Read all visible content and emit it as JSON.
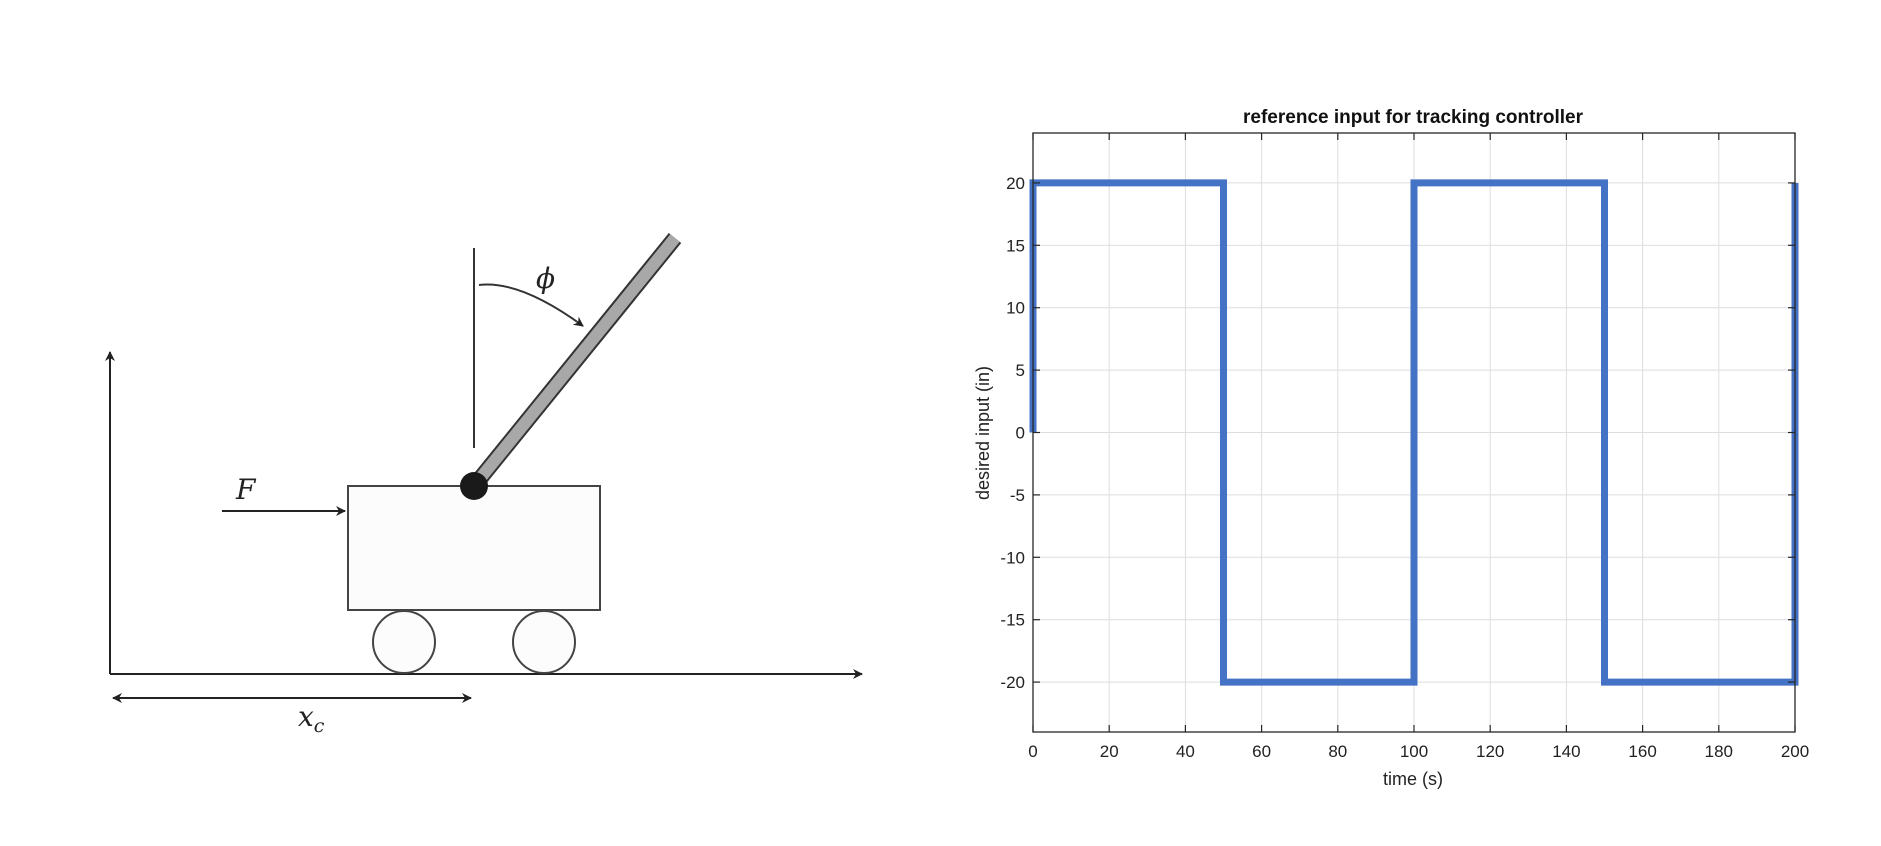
{
  "diagram": {
    "force_label": "F",
    "angle_label": "ϕ",
    "position_label_main": "x",
    "position_label_sub": "c"
  },
  "chart_data": {
    "type": "line",
    "title": "reference input for tracking controller",
    "xlabel": "time (s)",
    "ylabel": "desired input (in)",
    "xlim": [
      0,
      200
    ],
    "ylim": [
      -24,
      24
    ],
    "xticks": [
      0,
      20,
      40,
      60,
      80,
      100,
      120,
      140,
      160,
      180,
      200
    ],
    "yticks": [
      20,
      15,
      10,
      5,
      0,
      -5,
      -10,
      -15,
      -20
    ],
    "grid": true,
    "series": [
      {
        "color": "#4472C4",
        "x": [
          0,
          0,
          50,
          50,
          100,
          100,
          150,
          150,
          200,
          200
        ],
        "y": [
          0,
          20,
          20,
          -20,
          -20,
          20,
          20,
          -20,
          -20,
          20
        ]
      }
    ]
  }
}
